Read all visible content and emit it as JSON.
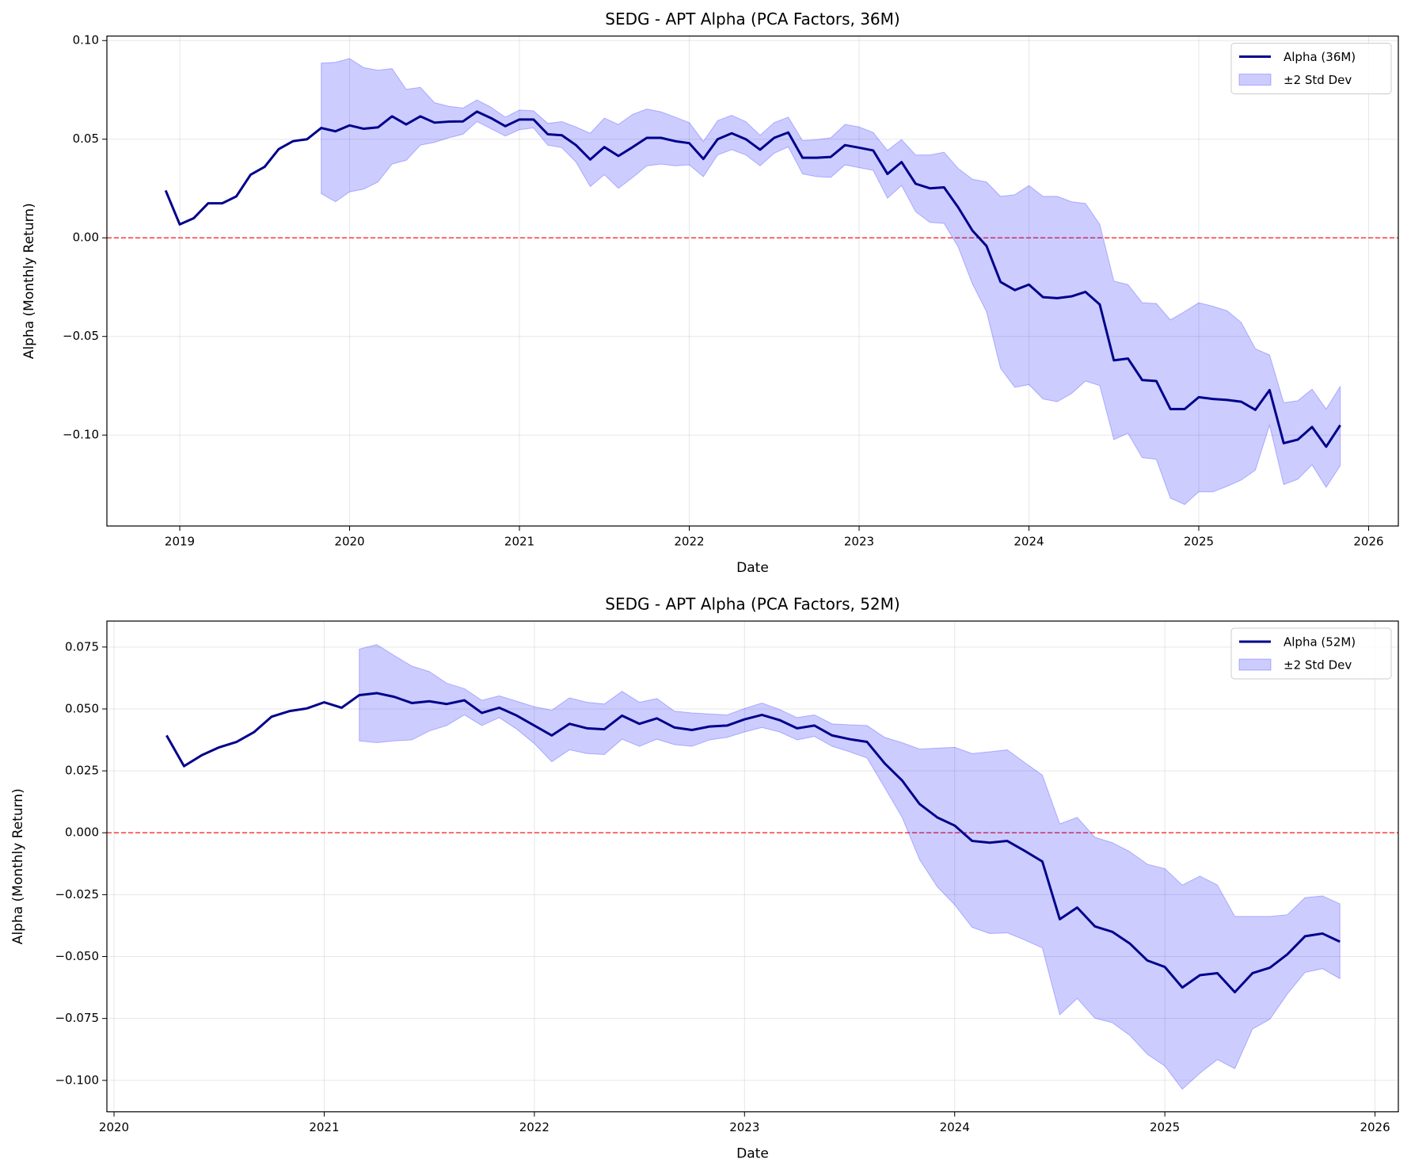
{
  "chart_data": [
    {
      "type": "line",
      "title": "SEDG - APT Alpha (PCA Factors, 36M)",
      "xlabel": "Date",
      "ylabel": "Alpha (Monthly Return)",
      "x": [
        2018.917,
        2019.0,
        2019.083,
        2019.167,
        2019.25,
        2019.333,
        2019.417,
        2019.5,
        2019.583,
        2019.667,
        2019.75,
        2019.833,
        2019.917,
        2020.0,
        2020.083,
        2020.167,
        2020.25,
        2020.333,
        2020.417,
        2020.5,
        2020.583,
        2020.667,
        2020.75,
        2020.833,
        2020.917,
        2021.0,
        2021.083,
        2021.167,
        2021.25,
        2021.333,
        2021.417,
        2021.5,
        2021.583,
        2021.667,
        2021.75,
        2021.833,
        2021.917,
        2022.0,
        2022.083,
        2022.167,
        2022.25,
        2022.333,
        2022.417,
        2022.5,
        2022.583,
        2022.667,
        2022.75,
        2022.833,
        2022.917,
        2023.0,
        2023.083,
        2023.167,
        2023.25,
        2023.333,
        2023.417,
        2023.5,
        2023.583,
        2023.667,
        2023.75,
        2023.833,
        2023.917,
        2024.0,
        2024.083,
        2024.167,
        2024.25,
        2024.333,
        2024.417,
        2024.5,
        2024.583,
        2024.667,
        2024.75,
        2024.833,
        2024.917,
        2025.0,
        2025.083,
        2025.167,
        2025.25,
        2025.333,
        2025.417,
        2025.5,
        2025.583,
        2025.667,
        2025.75,
        2025.833
      ],
      "series": [
        {
          "name": "Alpha (36M)",
          "color": "#00008b",
          "values": [
            0.024,
            0.0068,
            0.01,
            0.0175,
            0.0175,
            0.021,
            0.032,
            0.036,
            0.045,
            0.049,
            0.05,
            0.0557,
            0.054,
            0.057,
            0.0553,
            0.056,
            0.0616,
            0.0575,
            0.0616,
            0.0584,
            0.0589,
            0.059,
            0.064,
            0.0607,
            0.0566,
            0.06,
            0.06,
            0.0525,
            0.052,
            0.047,
            0.0397,
            0.046,
            0.0415,
            0.046,
            0.0507,
            0.0507,
            0.049,
            0.048,
            0.04,
            0.05,
            0.053,
            0.05,
            0.0447,
            0.0507,
            0.0534,
            0.0406,
            0.0406,
            0.041,
            0.047,
            0.0457,
            0.0443,
            0.0324,
            0.0384,
            0.0274,
            0.0251,
            0.0256,
            0.0155,
            0.0037,
            -0.0041,
            -0.0224,
            -0.0265,
            -0.0237,
            -0.0301,
            -0.0306,
            -0.0297,
            -0.0274,
            -0.0338,
            -0.0621,
            -0.0612,
            -0.0721,
            -0.0726,
            -0.0868,
            -0.0868,
            -0.0808,
            -0.0817,
            -0.0822,
            -0.0831,
            -0.0872,
            -0.0772,
            -0.1041,
            -0.1023,
            -0.0959,
            -0.1059,
            -0.095
          ]
        }
      ],
      "band": {
        "name": "±2 Std Dev",
        "color": "#0000ff",
        "upper": [
          null,
          null,
          null,
          null,
          null,
          null,
          null,
          null,
          null,
          null,
          null,
          0.0886,
          0.089,
          0.0909,
          0.0863,
          0.085,
          0.0858,
          0.0753,
          0.0763,
          0.0685,
          0.0667,
          0.0658,
          0.0699,
          0.0662,
          0.0612,
          0.0648,
          0.0644,
          0.058,
          0.0589,
          0.0562,
          0.053,
          0.0607,
          0.0575,
          0.0626,
          0.0653,
          0.0639,
          0.0612,
          0.0584,
          0.0489,
          0.0594,
          0.0621,
          0.0589,
          0.052,
          0.0584,
          0.0612,
          0.0493,
          0.0498,
          0.0507,
          0.0575,
          0.0562,
          0.0534,
          0.0443,
          0.0498,
          0.042,
          0.042,
          0.0434,
          0.0352,
          0.0297,
          0.0283,
          0.021,
          0.0219,
          0.0265,
          0.021,
          0.021,
          0.0183,
          0.0174,
          0.0068,
          -0.0219,
          -0.0237,
          -0.0329,
          -0.0333,
          -0.0416,
          -0.0374,
          -0.0329,
          -0.0347,
          -0.037,
          -0.0429,
          -0.0562,
          -0.0594,
          -0.0836,
          -0.0826,
          -0.0767,
          -0.0868,
          -0.0753
        ],
        "lower": [
          null,
          null,
          null,
          null,
          null,
          null,
          null,
          null,
          null,
          null,
          null,
          0.0224,
          0.0183,
          0.0233,
          0.0247,
          0.0283,
          0.0374,
          0.0393,
          0.047,
          0.0484,
          0.0507,
          0.0525,
          0.0589,
          0.0553,
          0.0516,
          0.0548,
          0.0557,
          0.047,
          0.0457,
          0.0384,
          0.026,
          0.032,
          0.0251,
          0.0306,
          0.0365,
          0.0374,
          0.0365,
          0.037,
          0.031,
          0.042,
          0.0447,
          0.042,
          0.0365,
          0.0429,
          0.0461,
          0.0324,
          0.031,
          0.0306,
          0.037,
          0.0356,
          0.0342,
          0.0201,
          0.0265,
          0.0132,
          0.0078,
          0.0073,
          -0.0046,
          -0.0233,
          -0.0374,
          -0.0662,
          -0.0758,
          -0.0744,
          -0.0817,
          -0.0831,
          -0.079,
          -0.0726,
          -0.0749,
          -0.1023,
          -0.0991,
          -0.1114,
          -0.1123,
          -0.132,
          -0.1352,
          -0.1288,
          -0.1288,
          -0.126,
          -0.1228,
          -0.1178,
          -0.095,
          -0.1251,
          -0.1224,
          -0.1151,
          -0.1265,
          -0.1155
        ]
      },
      "reference_line": {
        "value": 0,
        "color": "#ff0000"
      },
      "xlim": [
        2018.571,
        2026.175
      ],
      "ylim": [
        -0.1461,
        0.1023
      ],
      "xticks": [
        2019,
        2020,
        2021,
        2022,
        2023,
        2024,
        2025,
        2026
      ],
      "yticks": [
        {
          "value": -0.1,
          "label": "−0.10"
        },
        {
          "value": -0.05,
          "label": "−0.05"
        },
        {
          "value": 0,
          "label": "0.00"
        },
        0.05,
        {
          "value": 0.1,
          "label": "0.10"
        }
      ],
      "grid": true,
      "legend": "upper right"
    },
    {
      "type": "line",
      "title": "SEDG - APT Alpha (PCA Factors, 52M)",
      "xlabel": "Date",
      "ylabel": "Alpha (Monthly Return)",
      "x": [
        2020.25,
        2020.333,
        2020.417,
        2020.5,
        2020.583,
        2020.667,
        2020.75,
        2020.833,
        2020.917,
        2021.0,
        2021.083,
        2021.167,
        2021.25,
        2021.333,
        2021.417,
        2021.5,
        2021.583,
        2021.667,
        2021.75,
        2021.833,
        2021.917,
        2022.0,
        2022.083,
        2022.167,
        2022.25,
        2022.333,
        2022.417,
        2022.5,
        2022.583,
        2022.667,
        2022.75,
        2022.833,
        2022.917,
        2023.0,
        2023.083,
        2023.167,
        2023.25,
        2023.333,
        2023.417,
        2023.5,
        2023.583,
        2023.667,
        2023.75,
        2023.833,
        2023.917,
        2024.0,
        2024.083,
        2024.167,
        2024.25,
        2024.333,
        2024.417,
        2024.5,
        2024.583,
        2024.667,
        2024.75,
        2024.833,
        2024.917,
        2025.0,
        2025.083,
        2025.167,
        2025.25,
        2025.333,
        2025.417,
        2025.5,
        2025.583,
        2025.667,
        2025.75,
        2025.833
      ],
      "series": [
        {
          "name": "Alpha (52M)",
          "color": "#00008b",
          "values": [
            0.0393,
            0.0269,
            0.0313,
            0.0345,
            0.0367,
            0.0407,
            0.0469,
            0.0491,
            0.0502,
            0.0527,
            0.0505,
            0.0556,
            0.0564,
            0.0549,
            0.0524,
            0.0531,
            0.052,
            0.0535,
            0.0484,
            0.0505,
            0.0473,
            0.0433,
            0.0393,
            0.044,
            0.0422,
            0.0418,
            0.0473,
            0.044,
            0.0462,
            0.0425,
            0.0415,
            0.0429,
            0.0433,
            0.0458,
            0.0476,
            0.0455,
            0.0422,
            0.0433,
            0.0393,
            0.0378,
            0.0367,
            0.028,
            0.0211,
            0.0116,
            0.0062,
            0.0029,
            -0.0033,
            -0.004,
            -0.0033,
            -0.0073,
            -0.0116,
            -0.0349,
            -0.0302,
            -0.0378,
            -0.04,
            -0.0447,
            -0.0516,
            -0.0542,
            -0.0625,
            -0.0575,
            -0.0567,
            -0.0644,
            -0.0567,
            -0.0545,
            -0.0491,
            -0.0418,
            -0.0407,
            -0.044
          ]
        }
      ],
      "band": {
        "name": "±2 Std Dev",
        "color": "#0000ff",
        "upper": [
          null,
          null,
          null,
          null,
          null,
          null,
          null,
          null,
          null,
          null,
          null,
          0.0742,
          0.076,
          0.0716,
          0.0673,
          0.0651,
          0.0604,
          0.0582,
          0.0535,
          0.0553,
          0.0531,
          0.0509,
          0.0495,
          0.0545,
          0.0527,
          0.052,
          0.0571,
          0.0527,
          0.0542,
          0.0491,
          0.0484,
          0.048,
          0.0476,
          0.0502,
          0.0524,
          0.0498,
          0.0465,
          0.0476,
          0.044,
          0.0436,
          0.0433,
          0.0385,
          0.0364,
          0.0338,
          0.0342,
          0.0345,
          0.032,
          0.0327,
          0.0335,
          0.0284,
          0.0233,
          0.0036,
          0.0062,
          -0.0018,
          -0.004,
          -0.0076,
          -0.0127,
          -0.0145,
          -0.0211,
          -0.0175,
          -0.0211,
          -0.0338,
          -0.0338,
          -0.0338,
          -0.0331,
          -0.0262,
          -0.0255,
          -0.0287
        ],
        "lower": [
          null,
          null,
          null,
          null,
          null,
          null,
          null,
          null,
          null,
          null,
          null,
          0.0371,
          0.0364,
          0.0371,
          0.0375,
          0.0411,
          0.0433,
          0.0476,
          0.0433,
          0.0465,
          0.0418,
          0.036,
          0.0287,
          0.0335,
          0.032,
          0.0316,
          0.0378,
          0.0349,
          0.0378,
          0.0356,
          0.0349,
          0.0375,
          0.0385,
          0.0407,
          0.0425,
          0.0407,
          0.0375,
          0.0389,
          0.0349,
          0.0327,
          0.0302,
          0.0182,
          0.0062,
          -0.0109,
          -0.0218,
          -0.0291,
          -0.0382,
          -0.0407,
          -0.0404,
          -0.0433,
          -0.0465,
          -0.0735,
          -0.0669,
          -0.0749,
          -0.0767,
          -0.0818,
          -0.0895,
          -0.0942,
          -0.1036,
          -0.0971,
          -0.0916,
          -0.0953,
          -0.0793,
          -0.0753,
          -0.0651,
          -0.0564,
          -0.0549,
          -0.0589
        ]
      },
      "reference_line": {
        "value": 0,
        "color": "#ff0000"
      },
      "xlim": [
        2019.966,
        2026.111
      ],
      "ylim": [
        -0.1127,
        0.0855
      ],
      "xticks": [
        2020,
        2021,
        2022,
        2023,
        2024,
        2025,
        2026
      ],
      "yticks": [
        {
          "value": -0.1,
          "label": "−0.100"
        },
        {
          "value": -0.075,
          "label": "−0.075"
        },
        {
          "value": -0.05,
          "label": "−0.050"
        },
        {
          "value": -0.025,
          "label": "−0.025"
        },
        {
          "value": 0,
          "label": "0.000"
        },
        0.025,
        {
          "value": 0.05,
          "label": "0.050"
        },
        0.075
      ],
      "grid": true,
      "legend": "upper right"
    }
  ]
}
